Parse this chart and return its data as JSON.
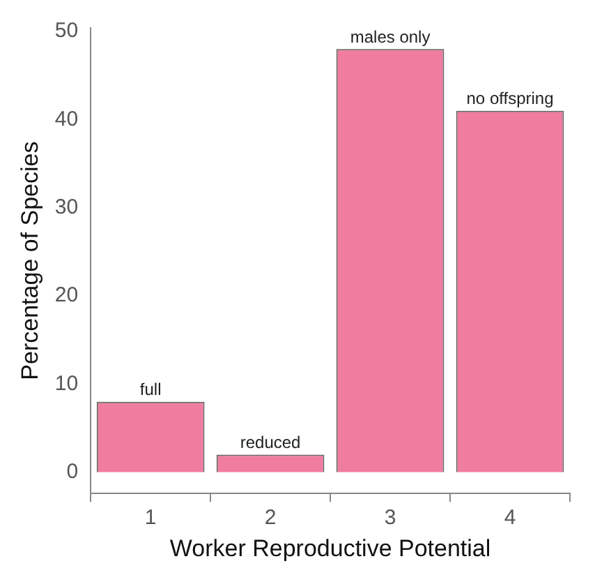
{
  "chart_data": {
    "type": "bar",
    "xlabel": "Worker Reproductive Potential",
    "ylabel": "Percentage of Species",
    "categories": [
      "1",
      "2",
      "3",
      "4"
    ],
    "values": [
      8,
      2,
      48,
      41
    ],
    "color": "#f07ca0",
    "ylim": [
      -2.4,
      50.4
    ],
    "yticks": [
      0,
      10,
      20,
      30,
      40,
      50
    ],
    "grid": false,
    "legend": false,
    "annotations": [
      {
        "text": "full",
        "x": "1",
        "y": 8
      },
      {
        "text": "reduced",
        "x": "2",
        "y": 2
      },
      {
        "text": "males only",
        "x": "3",
        "y": 48
      },
      {
        "text": "no offspring",
        "x": "4",
        "y": 41
      }
    ]
  }
}
